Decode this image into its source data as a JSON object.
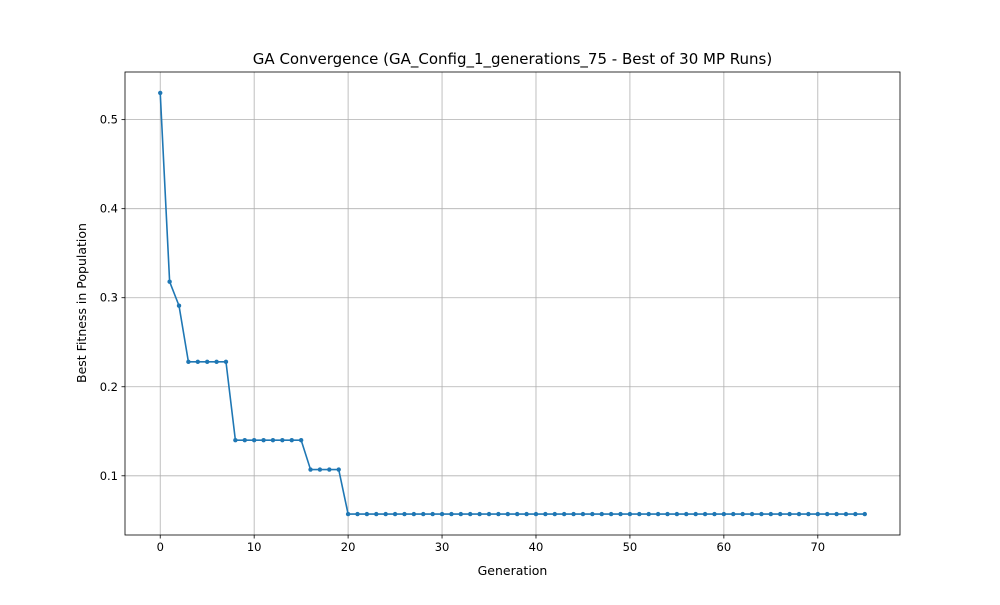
{
  "chart_data": {
    "type": "line",
    "title": "GA Convergence (GA_Config_1_generations_75 - Best of 30 MP Runs)",
    "xlabel": "Generation",
    "ylabel": "Best Fitness in Population",
    "xlim": [
      -3.75,
      78.75
    ],
    "ylim": [
      0.0335,
      0.5535
    ],
    "xticks": [
      0,
      10,
      20,
      30,
      40,
      50,
      60,
      70
    ],
    "yticks": [
      0.1,
      0.2,
      0.3,
      0.4,
      0.5
    ],
    "grid": true,
    "marker": "circle",
    "series": [
      {
        "name": "",
        "color": "#1f77b4",
        "x": [
          0,
          1,
          2,
          3,
          4,
          5,
          6,
          7,
          8,
          9,
          10,
          11,
          12,
          13,
          14,
          15,
          16,
          17,
          18,
          19,
          20,
          21,
          22,
          23,
          24,
          25,
          26,
          27,
          28,
          29,
          30,
          31,
          32,
          33,
          34,
          35,
          36,
          37,
          38,
          39,
          40,
          41,
          42,
          43,
          44,
          45,
          46,
          47,
          48,
          49,
          50,
          51,
          52,
          53,
          54,
          55,
          56,
          57,
          58,
          59,
          60,
          61,
          62,
          63,
          64,
          65,
          66,
          67,
          68,
          69,
          70,
          71,
          72,
          73,
          74,
          75
        ],
        "y": [
          0.53,
          0.318,
          0.291,
          0.228,
          0.228,
          0.228,
          0.228,
          0.228,
          0.14,
          0.14,
          0.14,
          0.14,
          0.14,
          0.14,
          0.14,
          0.14,
          0.107,
          0.107,
          0.107,
          0.107,
          0.057,
          0.057,
          0.057,
          0.057,
          0.057,
          0.057,
          0.057,
          0.057,
          0.057,
          0.057,
          0.057,
          0.057,
          0.057,
          0.057,
          0.057,
          0.057,
          0.057,
          0.057,
          0.057,
          0.057,
          0.057,
          0.057,
          0.057,
          0.057,
          0.057,
          0.057,
          0.057,
          0.057,
          0.057,
          0.057,
          0.057,
          0.057,
          0.057,
          0.057,
          0.057,
          0.057,
          0.057,
          0.057,
          0.057,
          0.057,
          0.057,
          0.057,
          0.057,
          0.057,
          0.057,
          0.057,
          0.057,
          0.057,
          0.057,
          0.057,
          0.057,
          0.057,
          0.057,
          0.057,
          0.057,
          0.057
        ]
      }
    ]
  }
}
